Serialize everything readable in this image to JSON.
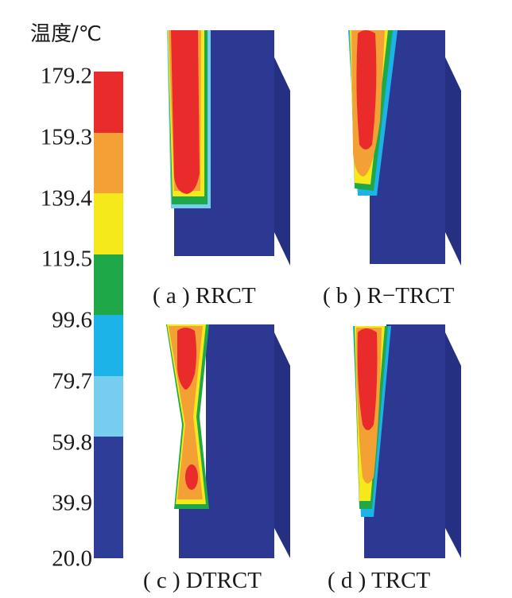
{
  "legend": {
    "title": "温度/℃",
    "ticks": [
      "179.2",
      "159.3",
      "139.4",
      "119.5",
      "99.6",
      "79.7",
      "59.8",
      "39.9",
      "20.0"
    ],
    "colors": [
      "#ea2b2b",
      "#f3a135",
      "#f6e91b",
      "#1ea847",
      "#1bb3e8",
      "#77cdee",
      "#2e3e98",
      "#2e3e98"
    ]
  },
  "panels": [
    {
      "label": "(a) RRCT",
      "caption": "( a ) RRCT"
    },
    {
      "label": "(b) R-TRCT",
      "caption": "( b ) R−TRCT"
    },
    {
      "label": "(c) DTRCT",
      "caption": "( c ) DTRCT"
    },
    {
      "label": "(d) TRCT",
      "caption": "( d ) TRCT"
    }
  ],
  "colors": {
    "block_front": "#2d3893",
    "block_side": "#263082",
    "block_top": "#33409e",
    "cool": "#2d3893",
    "light_blue": "#77cdee",
    "cyan": "#1bb3e8",
    "green": "#1ea847",
    "yellow": "#f6e91b",
    "orange": "#f3a135",
    "red": "#ea2b2b"
  }
}
